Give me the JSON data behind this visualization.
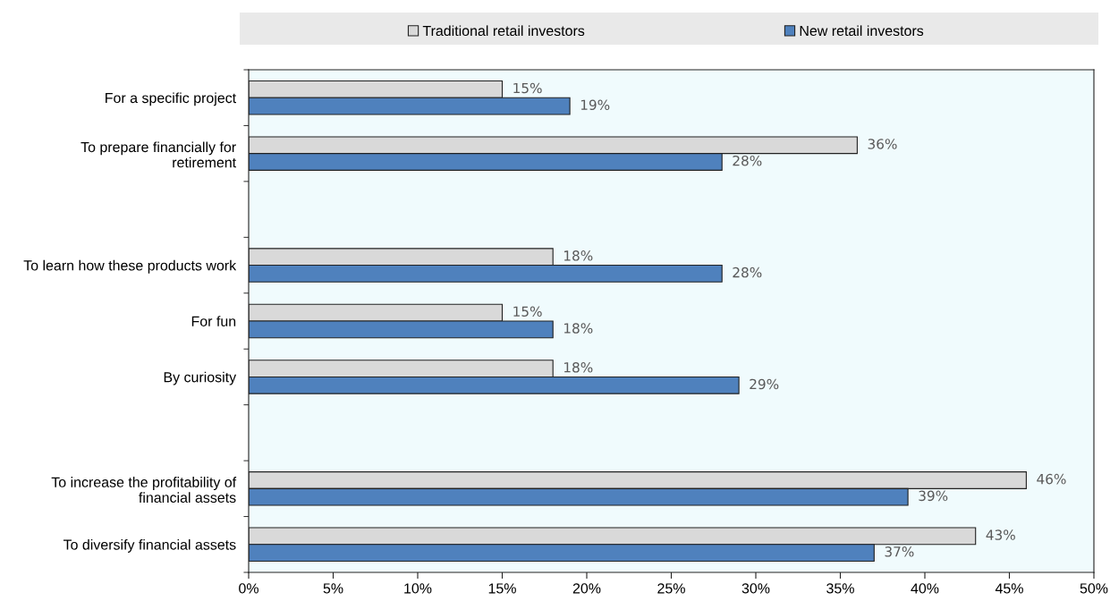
{
  "chart_data": {
    "type": "bar",
    "orientation": "horizontal",
    "categories": [
      "For a specific project",
      "To prepare financially for\nretirement",
      null,
      "To learn how these products work",
      "For fun",
      "By curiosity",
      null,
      "To increase the profitability of\nfinancial assets",
      "To diversify financial assets"
    ],
    "series": [
      {
        "name": "Traditional retail investors",
        "color": "#d9d9d9",
        "values": [
          15,
          36,
          null,
          18,
          15,
          18,
          null,
          46,
          43
        ],
        "value_labels": [
          "15%",
          "36%",
          null,
          "18%",
          "15%",
          "18%",
          null,
          "46%",
          "43%"
        ]
      },
      {
        "name": "New retail investors",
        "color": "#4f81bd",
        "values": [
          19,
          28,
          null,
          28,
          18,
          29,
          null,
          39,
          37
        ],
        "value_labels": [
          "19%",
          "28%",
          null,
          "28%",
          "18%",
          "29%",
          null,
          "39%",
          "37%"
        ]
      }
    ],
    "xlim": [
      0,
      50
    ],
    "xticks": [
      {
        "value": 0,
        "label": "0%"
      },
      {
        "value": 5,
        "label": "5%"
      },
      {
        "value": 10,
        "label": "10%"
      },
      {
        "value": 15,
        "label": "15%"
      },
      {
        "value": 20,
        "label": "20%"
      },
      {
        "value": 25,
        "label": "25%"
      },
      {
        "value": 30,
        "label": "30%"
      },
      {
        "value": 35,
        "label": "35%"
      },
      {
        "value": 40,
        "label": "40%"
      },
      {
        "value": 45,
        "label": "45%"
      },
      {
        "value": 50,
        "label": "50%"
      }
    ],
    "grid": false,
    "legend": "top"
  }
}
